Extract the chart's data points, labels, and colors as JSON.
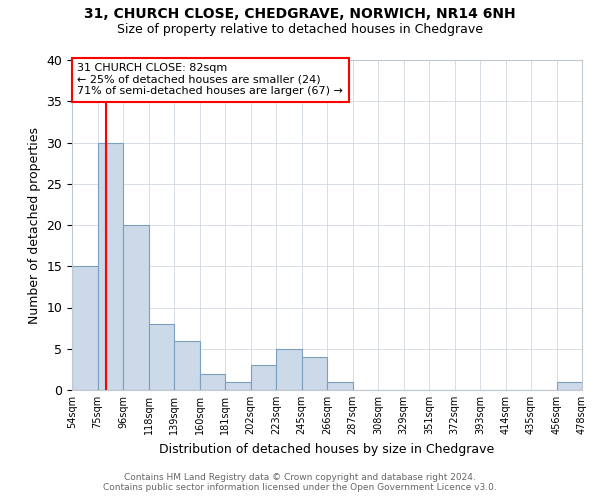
{
  "title1": "31, CHURCH CLOSE, CHEDGRAVE, NORWICH, NR14 6NH",
  "title2": "Size of property relative to detached houses in Chedgrave",
  "xlabel": "Distribution of detached houses by size in Chedgrave",
  "ylabel": "Number of detached properties",
  "bin_labels": [
    "54sqm",
    "75sqm",
    "96sqm",
    "118sqm",
    "139sqm",
    "160sqm",
    "181sqm",
    "202sqm",
    "223sqm",
    "245sqm",
    "266sqm",
    "287sqm",
    "308sqm",
    "329sqm",
    "351sqm",
    "372sqm",
    "393sqm",
    "414sqm",
    "435sqm",
    "456sqm",
    "478sqm"
  ],
  "bar_heights": [
    15,
    30,
    20,
    8,
    6,
    2,
    1,
    3,
    5,
    4,
    1,
    0,
    0,
    0,
    0,
    0,
    0,
    0,
    0,
    1
  ],
  "bar_color": "#ccd9e8",
  "bar_edge_color": "#7aa0c0",
  "annotation_title": "31 CHURCH CLOSE: 82sqm",
  "annotation_line1": "← 25% of detached houses are smaller (24)",
  "annotation_line2": "71% of semi-detached houses are larger (67) →",
  "footer1": "Contains HM Land Registry data © Crown copyright and database right 2024.",
  "footer2": "Contains public sector information licensed under the Open Government Licence v3.0.",
  "ylim": [
    0,
    40
  ],
  "yticks": [
    0,
    5,
    10,
    15,
    20,
    25,
    30,
    35,
    40
  ]
}
